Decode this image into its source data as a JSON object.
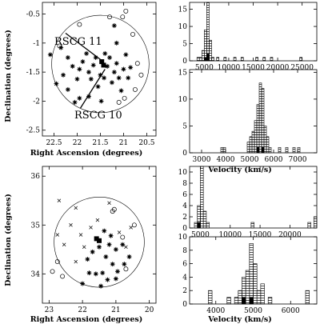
{
  "chart_data": [
    {
      "type": "scatter",
      "xlabel": "Right Ascension (degrees)",
      "ylabel": "Declination (degrees)",
      "xlim": [
        22.75,
        20.3
      ],
      "ylim": [
        -2.6,
        -0.3
      ],
      "xticks": [
        22.5,
        22,
        21.5,
        21,
        20.5
      ],
      "yticks": [
        -2.5,
        -2,
        -1.5,
        -1,
        -0.5
      ],
      "xtick_labels": [
        "22.5",
        "22",
        "21.5",
        "21",
        "20.5"
      ],
      "ytick_labels": [
        "-2.5",
        "-2",
        "-1.5",
        "-1",
        "-0.5"
      ],
      "circle": {
        "center": [
          21.5,
          -1.36
        ],
        "radius": 1.05
      },
      "annotations": [
        {
          "text": "RSCG 11",
          "label_at": [
            22.25,
            -0.83
          ],
          "arrow_to": [
            21.47,
            -1.3
          ]
        },
        {
          "text": "RSCG 10",
          "label_at": [
            21.93,
            -2.12
          ],
          "arrow_to": [
            21.4,
            -1.45
          ]
        }
      ],
      "series": [
        {
          "marker": "asterisk",
          "points": [
            [
              22.58,
              -1.2
            ],
            [
              22.35,
              -1.08
            ],
            [
              22.2,
              -1.25
            ],
            [
              22.1,
              -1.4
            ],
            [
              22.3,
              -1.55
            ],
            [
              22.45,
              -1.7
            ],
            [
              22.2,
              -1.8
            ],
            [
              22.0,
              -1.62
            ],
            [
              21.95,
              -1.45
            ],
            [
              21.88,
              -1.32
            ],
            [
              21.8,
              -1.18
            ],
            [
              21.75,
              -1.5
            ],
            [
              21.7,
              -1.62
            ],
            [
              21.65,
              -1.38
            ],
            [
              21.6,
              -1.25
            ],
            [
              21.55,
              -1.75
            ],
            [
              21.5,
              -1.55
            ],
            [
              21.42,
              -1.6
            ],
            [
              21.35,
              -1.4
            ],
            [
              21.3,
              -1.25
            ],
            [
              21.25,
              -1.68
            ],
            [
              21.2,
              -1.5
            ],
            [
              21.15,
              -1.35
            ],
            [
              21.1,
              -1.6
            ],
            [
              21.05,
              -1.82
            ],
            [
              21.0,
              -1.45
            ],
            [
              20.95,
              -1.2
            ],
            [
              20.9,
              -1.6
            ],
            [
              21.75,
              -1.92
            ],
            [
              21.95,
              -1.95
            ],
            [
              22.05,
              -2.02
            ],
            [
              21.4,
              -1.18
            ],
            [
              21.48,
              -2.0
            ],
            [
              21.2,
              -0.7
            ],
            [
              21.15,
              -1.0
            ],
            [
              20.85,
              -1.42
            ]
          ]
        },
        {
          "marker": "circle",
          "points": [
            [
              20.95,
              -0.45
            ],
            [
              20.8,
              -0.85
            ],
            [
              20.7,
              -1.35
            ],
            [
              20.62,
              -1.55
            ],
            [
              20.75,
              -1.8
            ],
            [
              21.02,
              -0.55
            ],
            [
              21.3,
              -0.55
            ],
            [
              21.95,
              -0.68
            ],
            [
              22.38,
              -1.05
            ],
            [
              21.1,
              -2.02
            ],
            [
              20.98,
              -1.95
            ]
          ]
        },
        {
          "marker": "filled-square",
          "points": [
            [
              21.47,
              -1.32
            ],
            [
              21.43,
              -1.38
            ]
          ]
        }
      ]
    },
    {
      "type": "bar",
      "subtype": "histogram",
      "xlim": [
        2000,
        28000
      ],
      "xticks": [
        5000,
        10000,
        15000,
        20000,
        25000
      ],
      "xtick_labels": [
        "5000",
        "10000",
        "15000",
        "20000",
        "25000"
      ],
      "ylim": [
        0,
        17
      ],
      "yticks": [
        0,
        5,
        10,
        15
      ],
      "ytick_labels": [
        "0",
        "5",
        "10",
        "15"
      ],
      "bin_width": 500,
      "series": [
        {
          "style": "hatched",
          "bins": [
            [
              3500,
              1
            ],
            [
              4000,
              1
            ],
            [
              4500,
              3
            ],
            [
              5000,
              9
            ],
            [
              5500,
              17
            ],
            [
              6000,
              6
            ],
            [
              6500,
              1
            ],
            [
              7500,
              1
            ],
            [
              9000,
              1
            ],
            [
              11000,
              1
            ],
            [
              12500,
              1
            ],
            [
              15500,
              1
            ],
            [
              17000,
              1
            ],
            [
              18500,
              1
            ],
            [
              24500,
              1
            ]
          ]
        },
        {
          "style": "filled",
          "bins": [
            [
              5000,
              1
            ],
            [
              5500,
              2
            ]
          ]
        }
      ]
    },
    {
      "type": "bar",
      "subtype": "histogram",
      "xlabel": "Velocity (km/s)",
      "xlim": [
        2500,
        7800
      ],
      "xticks": [
        3000,
        4000,
        5000,
        6000,
        7000
      ],
      "xtick_labels": [
        "3000",
        "4000",
        "5000",
        "6000",
        "7000"
      ],
      "ylim": [
        0,
        15.5
      ],
      "yticks": [
        0,
        5,
        10,
        15
      ],
      "ytick_labels": [
        "0",
        "5",
        "10",
        "15"
      ],
      "bin_width": 100,
      "series": [
        {
          "style": "hatched",
          "bins": [
            [
              3800,
              1
            ],
            [
              3900,
              1
            ],
            [
              4900,
              2
            ],
            [
              5000,
              3
            ],
            [
              5100,
              4
            ],
            [
              5200,
              6
            ],
            [
              5300,
              9
            ],
            [
              5400,
              13
            ],
            [
              5500,
              12
            ],
            [
              5600,
              5
            ],
            [
              5700,
              3
            ],
            [
              5800,
              1
            ],
            [
              6200,
              1
            ],
            [
              6500,
              1
            ],
            [
              6800,
              1
            ],
            [
              7000,
              1
            ]
          ]
        },
        {
          "style": "filled",
          "bins": [
            [
              5300,
              1
            ],
            [
              5500,
              1
            ]
          ]
        }
      ]
    },
    {
      "type": "scatter",
      "xlabel": "Right Ascension (degrees)",
      "ylabel": "Declination (degrees)",
      "xlim": [
        23.2,
        19.8
      ],
      "ylim": [
        33.4,
        36.2
      ],
      "xticks": [
        23,
        22,
        21,
        20
      ],
      "yticks": [
        34,
        35,
        36
      ],
      "xtick_labels": [
        "23",
        "22",
        "21",
        "20"
      ],
      "ytick_labels": [
        "34",
        "35",
        "36"
      ],
      "circle": {
        "center": [
          21.5,
          34.65
        ],
        "radius": 1.35
      },
      "series": [
        {
          "marker": "asterisk",
          "points": [
            [
              21.35,
              34.88
            ],
            [
              21.15,
              34.78
            ],
            [
              21.5,
              34.55
            ],
            [
              21.3,
              34.35
            ],
            [
              21.1,
              34.2
            ],
            [
              21.0,
              34.5
            ],
            [
              20.8,
              34.6
            ],
            [
              20.75,
              34.2
            ],
            [
              20.6,
              34.35
            ],
            [
              21.7,
              34.45
            ],
            [
              21.85,
              34.3
            ],
            [
              21.8,
              34.02
            ],
            [
              21.6,
              34.0
            ],
            [
              21.4,
              34.02
            ],
            [
              21.25,
              33.88
            ],
            [
              21.0,
              33.9
            ],
            [
              21.45,
              33.75
            ],
            [
              22.0,
              33.8
            ],
            [
              20.95,
              34.05
            ],
            [
              21.2,
              34.6
            ]
          ]
        },
        {
          "marker": "x",
          "points": [
            [
              22.7,
              35.5
            ],
            [
              22.2,
              35.35
            ],
            [
              22.35,
              35.0
            ],
            [
              22.75,
              34.8
            ],
            [
              22.55,
              34.6
            ],
            [
              22.05,
              34.8
            ],
            [
              21.95,
              34.55
            ],
            [
              22.2,
              34.25
            ],
            [
              21.55,
              35.1
            ],
            [
              21.75,
              34.95
            ],
            [
              20.9,
              34.85
            ],
            [
              21.2,
              35.45
            ],
            [
              20.55,
              34.95
            ],
            [
              20.7,
              34.55
            ]
          ]
        },
        {
          "marker": "circle",
          "points": [
            [
              21.05,
              35.32
            ],
            [
              21.1,
              35.28
            ],
            [
              20.45,
              35.0
            ],
            [
              20.8,
              34.75
            ],
            [
              22.75,
              34.25
            ],
            [
              22.6,
              33.95
            ],
            [
              22.9,
              34.05
            ],
            [
              20.7,
              34.1
            ]
          ]
        },
        {
          "marker": "filled-square",
          "points": [
            [
              21.58,
              34.72
            ],
            [
              21.5,
              34.68
            ]
          ]
        }
      ]
    },
    {
      "type": "bar",
      "subtype": "histogram",
      "xlim": [
        3200,
        24500
      ],
      "xticks": [
        5000,
        10000,
        15000,
        20000
      ],
      "xtick_labels": [
        "5000",
        "10000",
        "15000",
        "20000"
      ],
      "ylim": [
        0,
        11
      ],
      "yticks": [
        0,
        2,
        4,
        6,
        8,
        10
      ],
      "ytick_labels": [
        "0",
        "2",
        "4",
        "6",
        "8",
        "10"
      ],
      "bin_width": 500,
      "series": [
        {
          "style": "hatched",
          "bins": [
            [
              4000,
              1
            ],
            [
              4500,
              4
            ],
            [
              5000,
              11
            ],
            [
              5500,
              3
            ],
            [
              6000,
              1
            ],
            [
              13500,
              1
            ],
            [
              23000,
              1
            ],
            [
              24000,
              2
            ]
          ]
        },
        {
          "style": "filled",
          "bins": [
            [
              4500,
              1
            ]
          ]
        }
      ]
    },
    {
      "type": "bar",
      "subtype": "histogram",
      "xlabel": "Velocity (km/s)",
      "xlim": [
        3300,
        6700
      ],
      "xticks": [
        4000,
        5000,
        6000
      ],
      "xtick_labels": [
        "4000",
        "5000",
        "6000"
      ],
      "ylim": [
        0,
        10
      ],
      "yticks": [
        0,
        2,
        4,
        6,
        8,
        10
      ],
      "ytick_labels": [
        "0",
        "2",
        "4",
        "6",
        "8",
        "10"
      ],
      "bin_width": 100,
      "series": [
        {
          "style": "hatched",
          "bins": [
            [
              3800,
              2
            ],
            [
              4300,
              1
            ],
            [
              4500,
              1
            ],
            [
              4600,
              2
            ],
            [
              4700,
              4
            ],
            [
              4800,
              5
            ],
            [
              4900,
              9
            ],
            [
              5000,
              6
            ],
            [
              5100,
              2
            ],
            [
              5200,
              3
            ],
            [
              5400,
              1
            ],
            [
              6400,
              2
            ]
          ]
        },
        {
          "style": "filled",
          "bins": [
            [
              4700,
              1
            ],
            [
              4900,
              1
            ]
          ]
        }
      ]
    }
  ]
}
